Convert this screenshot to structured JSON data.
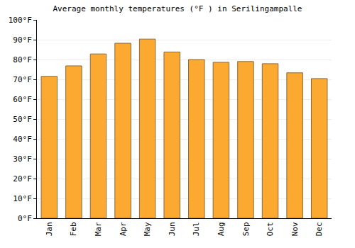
{
  "chart_data": {
    "type": "bar",
    "title": "Average monthly temperatures (°F ) in Serilingampalle",
    "categories": [
      "Jan",
      "Feb",
      "Mar",
      "Apr",
      "May",
      "Jun",
      "Jul",
      "Aug",
      "Sep",
      "Oct",
      "Nov",
      "Dec"
    ],
    "values": [
      71.5,
      76.8,
      82.8,
      88.2,
      90.3,
      83.8,
      80.0,
      78.6,
      79.0,
      77.9,
      73.3,
      70.4
    ],
    "color": "#fba930",
    "ylim": [
      0,
      100
    ],
    "yticks": [
      {
        "value": 0,
        "label": "0°F"
      },
      {
        "value": 10,
        "label": "10°F"
      },
      {
        "value": 20,
        "label": "20°F"
      },
      {
        "value": 30,
        "label": "30°F"
      },
      {
        "value": 40,
        "label": "40°F"
      },
      {
        "value": 50,
        "label": "50°F"
      },
      {
        "value": 60,
        "label": "60°F"
      },
      {
        "value": 70,
        "label": "70°F"
      },
      {
        "value": 80,
        "label": "80°F"
      },
      {
        "value": 90,
        "label": "90°F"
      },
      {
        "value": 100,
        "label": "100°F"
      }
    ],
    "grid": true
  }
}
